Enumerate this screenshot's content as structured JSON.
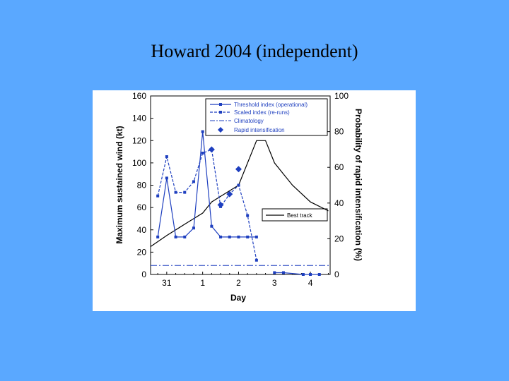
{
  "slide": {
    "title": "Howard 2004 (independent)"
  },
  "colors": {
    "background": "#5aa8ff",
    "series_blue": "#1e3fbf",
    "black": "#000000"
  },
  "chart_data": {
    "type": "line",
    "xlabel": "Day",
    "ylabel_left": "Maximum sustained wind (kt)",
    "ylabel_right": "Probability of rapid intensification (%)",
    "x_tick_labels": [
      "31",
      "1",
      "2",
      "3",
      "4"
    ],
    "x_tick_positions_day": [
      0,
      1,
      2,
      3,
      4
    ],
    "xlim": [
      -0.45,
      4.55
    ],
    "ylim_left": [
      0,
      160
    ],
    "ylim_right": [
      0,
      100
    ],
    "y_ticks_left": [
      "0",
      "20",
      "40",
      "60",
      "80",
      "100",
      "120",
      "140",
      "160"
    ],
    "y_ticks_right": [
      "0",
      "20",
      "40",
      "60",
      "80",
      "100"
    ],
    "grid": false,
    "legend": [
      {
        "label": "Threshold index (operational)",
        "style": "solid-square"
      },
      {
        "label": "Scaled index (re-runs)",
        "style": "dashed-square"
      },
      {
        "label": "Climatology",
        "style": "dashdot"
      },
      {
        "label": "Rapid intensification",
        "style": "diamond"
      }
    ],
    "best_track_legend": "Best track",
    "series": [
      {
        "name": "Best track",
        "axis": "left",
        "style": "solid-black",
        "x": [
          -0.45,
          0.0,
          0.5,
          1.0,
          1.25,
          1.5,
          1.75,
          2.0,
          2.25,
          2.5,
          2.75,
          3.0,
          3.25,
          3.5,
          4.0,
          4.5
        ],
        "y": [
          25,
          35,
          45,
          55,
          65,
          70,
          75,
          80,
          100,
          120,
          120,
          100,
          90,
          80,
          65,
          57
        ]
      },
      {
        "name": "Threshold index (operational)",
        "axis": "right",
        "style": "solid-square",
        "x": [
          -0.25,
          0.0,
          0.25,
          0.5,
          0.75,
          1.0,
          1.25,
          1.5,
          1.75,
          2.0,
          2.25,
          2.5
        ],
        "y": [
          21,
          54,
          21,
          21,
          26,
          80,
          27,
          21,
          21,
          21,
          21,
          21
        ]
      },
      {
        "name": "Scaled index (re-runs)",
        "axis": "right",
        "style": "dashed-square",
        "x": [
          -0.25,
          0.0,
          0.25,
          0.5,
          0.75,
          1.0,
          1.25,
          1.5,
          1.75,
          2.0,
          2.25,
          2.5
        ],
        "y": [
          44,
          66,
          46,
          46,
          52,
          68,
          70,
          38,
          45,
          50,
          33,
          8
        ]
      },
      {
        "name": "Threshold index (operational)",
        "axis": "right",
        "style": "solid-square",
        "x": [
          3.0,
          3.25,
          3.8,
          4.0,
          4.25
        ],
        "y": [
          1,
          1,
          0,
          0,
          0
        ]
      },
      {
        "name": "Climatology",
        "axis": "right",
        "style": "dashdot",
        "x": [
          -0.45,
          4.55
        ],
        "y": [
          5,
          5
        ]
      }
    ],
    "rapid_intensification": {
      "x": [
        1.25,
        1.5,
        1.75,
        2.0
      ],
      "y": [
        70,
        39,
        45,
        59
      ]
    }
  }
}
